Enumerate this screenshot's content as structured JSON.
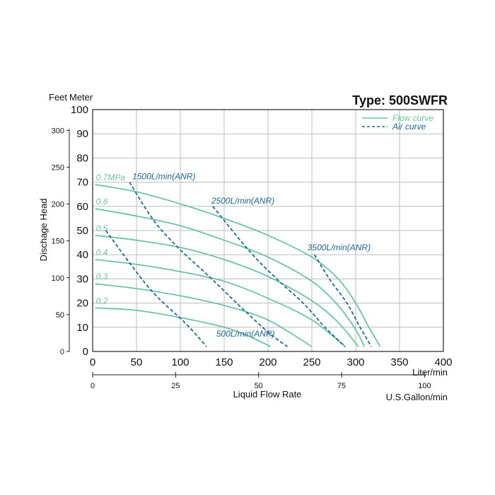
{
  "chart_data": {
    "type": "line",
    "title": "Type: 500SWFR",
    "ylabel": "Dischage Head",
    "ylabel_units_left": "Feet",
    "ylabel_units_right": "Meter",
    "xlabel": "Liquid Flow Rate",
    "x_unit_primary": "Liter/min",
    "x_unit_secondary": "U.S.Gallon/min",
    "xlim": [
      0,
      400
    ],
    "ylim": [
      0,
      100
    ],
    "x_ticks": [
      0,
      50,
      100,
      150,
      200,
      250,
      300,
      350,
      400
    ],
    "y_ticks_meter": [
      0,
      10,
      20,
      30,
      40,
      50,
      60,
      70,
      80,
      90,
      100
    ],
    "y_ticks_feet": [
      0,
      50,
      100,
      150,
      200,
      250,
      300
    ],
    "x_ticks_gallon": [
      0,
      25,
      50,
      75,
      100
    ],
    "grid": true,
    "legend": {
      "position": "top-right",
      "entries": [
        {
          "label": "Flow curve",
          "style": "solid",
          "color": "#6cc3a6"
        },
        {
          "label": "Air curve",
          "style": "dashed",
          "color": "#1a6a9a"
        }
      ]
    },
    "colors": {
      "flow": "#6cc3a6",
      "air": "#1a6a9a",
      "grid": "#bdbdbd"
    },
    "flow_curves": [
      {
        "label": "0.7MPa",
        "points": [
          [
            3,
            69
          ],
          [
            50,
            66
          ],
          [
            100,
            61
          ],
          [
            150,
            55
          ],
          [
            200,
            48
          ],
          [
            250,
            39
          ],
          [
            280,
            30
          ],
          [
            300,
            20
          ],
          [
            315,
            10
          ],
          [
            328,
            2
          ]
        ]
      },
      {
        "label": "0.6",
        "points": [
          [
            3,
            59
          ],
          [
            50,
            56
          ],
          [
            100,
            52
          ],
          [
            150,
            46
          ],
          [
            200,
            39
          ],
          [
            250,
            29
          ],
          [
            280,
            19
          ],
          [
            300,
            9
          ],
          [
            310,
            2
          ]
        ]
      },
      {
        "label": "0.5",
        "points": [
          [
            3,
            48
          ],
          [
            50,
            46
          ],
          [
            100,
            43
          ],
          [
            150,
            38
          ],
          [
            200,
            31
          ],
          [
            250,
            21
          ],
          [
            280,
            12
          ],
          [
            303,
            2
          ]
        ]
      },
      {
        "label": "0.4",
        "points": [
          [
            3,
            38
          ],
          [
            50,
            36
          ],
          [
            100,
            33
          ],
          [
            150,
            29
          ],
          [
            200,
            22
          ],
          [
            250,
            13
          ],
          [
            288,
            2
          ]
        ]
      },
      {
        "label": "0.3",
        "points": [
          [
            3,
            28
          ],
          [
            50,
            26
          ],
          [
            100,
            23
          ],
          [
            150,
            19
          ],
          [
            200,
            13
          ],
          [
            250,
            2
          ]
        ]
      },
      {
        "label": "0.2",
        "points": [
          [
            3,
            18
          ],
          [
            50,
            17
          ],
          [
            100,
            14
          ],
          [
            150,
            10
          ],
          [
            180,
            6
          ],
          [
            203,
            2
          ]
        ]
      }
    ],
    "air_curves": [
      {
        "label": "500L/min(ANR)",
        "points": [
          [
            15,
            50
          ],
          [
            65,
            26
          ],
          [
            105,
            12
          ],
          [
            130,
            2
          ]
        ]
      },
      {
        "label": "1500L/min(ANR)",
        "points": [
          [
            42,
            70
          ],
          [
            70,
            54
          ],
          [
            100,
            42
          ],
          [
            130,
            32
          ],
          [
            170,
            18
          ],
          [
            200,
            8
          ],
          [
            222,
            2
          ]
        ]
      },
      {
        "label": "2500L/min(ANR)",
        "points": [
          [
            137,
            60
          ],
          [
            180,
            41
          ],
          [
            210,
            30
          ],
          [
            240,
            20
          ],
          [
            265,
            10
          ],
          [
            288,
            2
          ]
        ]
      },
      {
        "label": "3500L/min(ANR)",
        "points": [
          [
            253,
            40
          ],
          [
            270,
            30
          ],
          [
            290,
            20
          ],
          [
            305,
            10
          ],
          [
            318,
            2
          ]
        ]
      }
    ]
  }
}
